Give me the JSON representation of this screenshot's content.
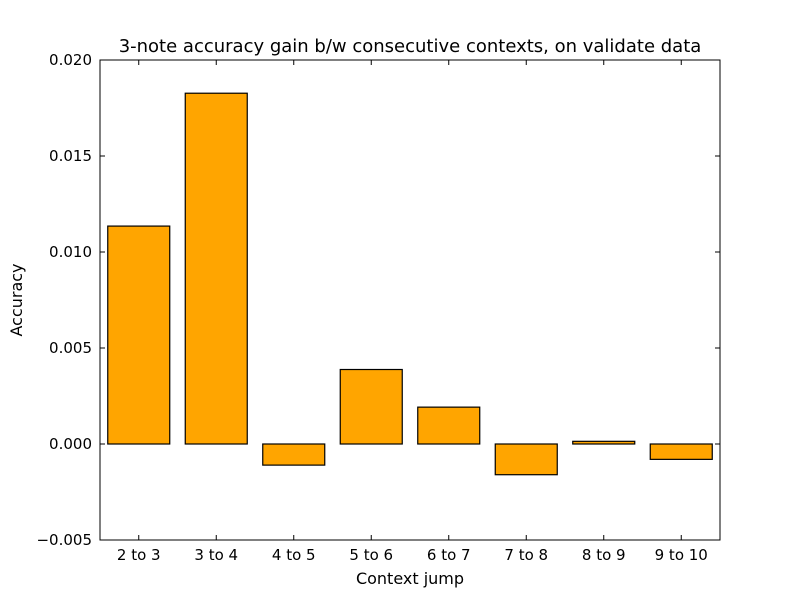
{
  "chart_data": {
    "type": "bar",
    "title": "3-note accuracy gain b/w consecutive contexts, on validate data",
    "xlabel": "Context jump",
    "ylabel": "Accuracy",
    "categories": [
      "2 to 3",
      "3 to 4",
      "4 to 5",
      "5 to 6",
      "6 to 7",
      "7 to 8",
      "8 to 9",
      "9 to 10"
    ],
    "values": [
      0.01135,
      0.01827,
      -0.0011,
      0.00388,
      0.00192,
      -0.0016,
      0.00014,
      -0.0008
    ],
    "ylim": [
      -0.005,
      0.02
    ],
    "yticks": [
      "−0.005",
      "0.000",
      "0.005",
      "0.010",
      "0.015",
      "0.020"
    ],
    "ytick_values": [
      -0.005,
      0,
      0.005,
      0.01,
      0.015,
      0.02
    ],
    "bar_color": "#ffa500",
    "grid": false,
    "legend": false
  }
}
